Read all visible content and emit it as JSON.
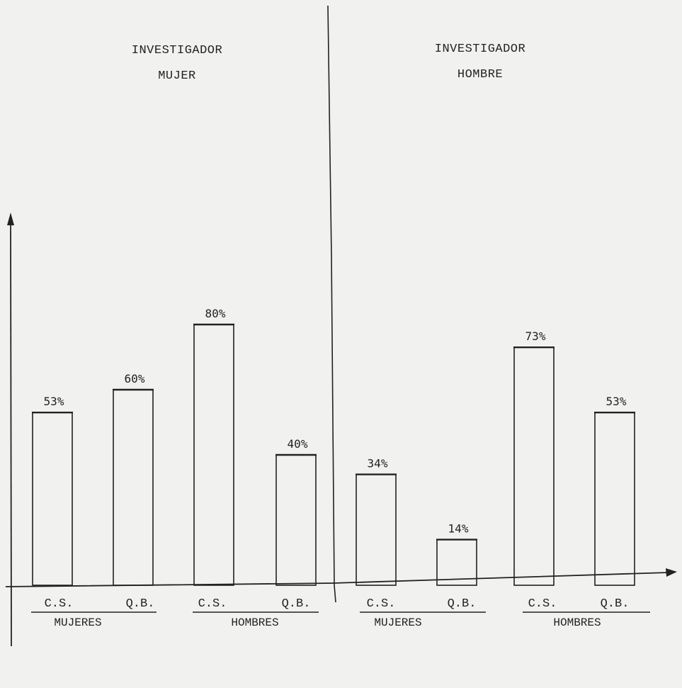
{
  "chart_data": {
    "type": "bar",
    "panels": [
      {
        "title_line1": "INVESTIGADOR",
        "title_line2": "MUJER",
        "categories": [
          "C.S.",
          "Q.B.",
          "C.S.",
          "Q.B."
        ],
        "groups": [
          "MUJERES",
          "HOMBRES"
        ],
        "values": [
          53,
          60,
          80,
          40
        ],
        "value_labels": [
          "53%",
          "60%",
          "80%",
          "40%"
        ]
      },
      {
        "title_line1": "INVESTIGADOR",
        "title_line2": "HOMBRE",
        "categories": [
          "C.S.",
          "Q.B.",
          "C.S.",
          "Q.B."
        ],
        "groups": [
          "MUJERES",
          "HOMBRES"
        ],
        "values": [
          34,
          14,
          73,
          53
        ],
        "value_labels": [
          "34%",
          "14%",
          "73%",
          "53%"
        ]
      }
    ],
    "ylim": [
      0,
      100
    ],
    "grid": false
  }
}
